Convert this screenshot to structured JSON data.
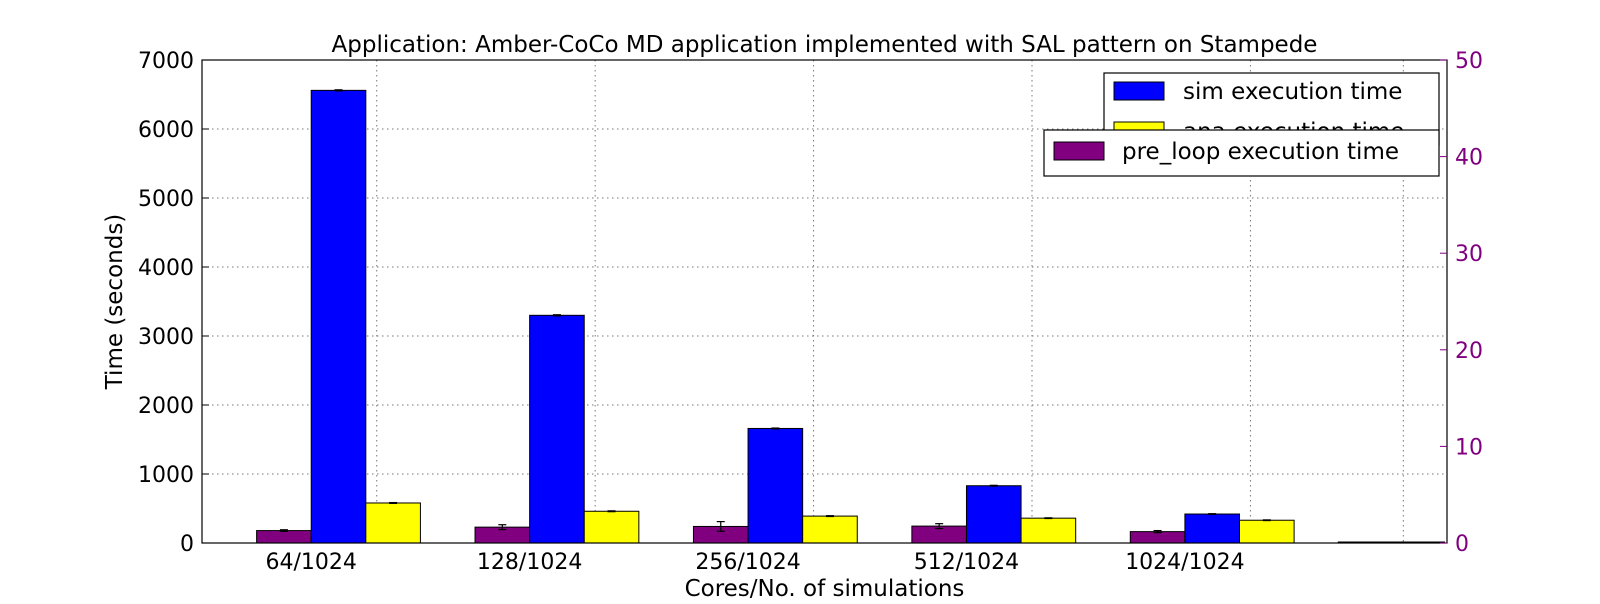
{
  "chart_data": {
    "type": "bar",
    "title": "Application: Amber-CoCo MD application implemented with SAL pattern on Stampede",
    "xlabel": "Cores/No. of simulations",
    "ylabel": "Time (seconds)",
    "categories": [
      "64/1024",
      "128/1024",
      "256/1024",
      "512/1024",
      "1024/1024"
    ],
    "ylim": [
      0,
      7000
    ],
    "y_ticks": [
      "0",
      "1000",
      "2000",
      "3000",
      "4000",
      "5000",
      "6000",
      "7000"
    ],
    "y2lim": [
      0,
      50
    ],
    "y2_ticks": [
      "0",
      "10",
      "20",
      "30",
      "40",
      "50"
    ],
    "grid": true,
    "legend_position": "top-right",
    "series": [
      {
        "name": "pre_loop execution time",
        "axis": "left",
        "color": "#800080",
        "values": [
          180,
          230,
          240,
          245,
          165
        ],
        "errors": [
          12,
          35,
          70,
          35,
          15
        ]
      },
      {
        "name": "sim execution time",
        "axis": "left",
        "color": "#0000ff",
        "values": [
          6560,
          3300,
          1660,
          830,
          420
        ],
        "errors": [
          8,
          8,
          6,
          6,
          5
        ]
      },
      {
        "name": "ana execution time",
        "axis": "left",
        "color": "#ffff00",
        "values": [
          580,
          460,
          390,
          360,
          330
        ],
        "errors": [
          6,
          6,
          6,
          5,
          5
        ]
      }
    ],
    "legend_upper": [
      "sim execution time",
      "ana execution time"
    ],
    "legend_lower": [
      "pre_loop execution time"
    ]
  }
}
